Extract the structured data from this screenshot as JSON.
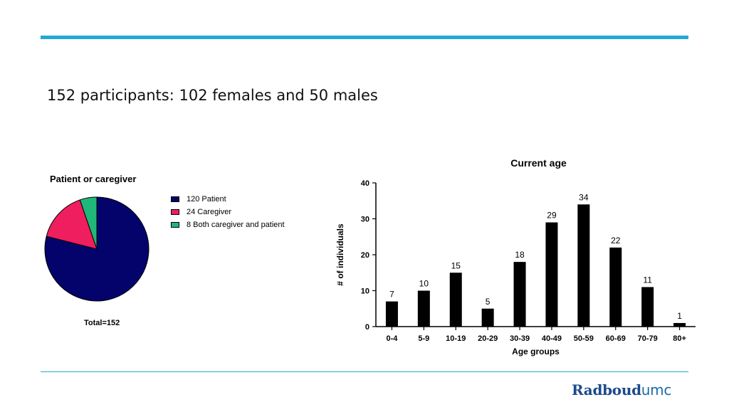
{
  "slide": {
    "title": "152 participants: 102 females and 50 males",
    "logo_main": "Radboud",
    "logo_suffix": "umc"
  },
  "chart_data": [
    {
      "type": "pie",
      "title": "Patient or caregiver",
      "footer": "Total=152",
      "legend_position": "right",
      "slices": [
        {
          "label": "120 Patient",
          "value": 120,
          "color": "#03036b"
        },
        {
          "label": "24 Caregiver",
          "value": 24,
          "color": "#ee1e5f"
        },
        {
          "label": "8 Both caregiver and patient",
          "value": 8,
          "color": "#1fb87a"
        }
      ]
    },
    {
      "type": "bar",
      "title": "Current age",
      "xlabel": "Age groups",
      "ylabel": "# of individuals",
      "ylim": [
        0,
        40
      ],
      "yticks": [
        0,
        10,
        20,
        30,
        40
      ],
      "categories": [
        "0-4",
        "5-9",
        "10-19",
        "20-29",
        "30-39",
        "40-49",
        "50-59",
        "60-69",
        "70-79",
        "80+"
      ],
      "values": [
        7,
        10,
        15,
        5,
        18,
        29,
        34,
        22,
        11,
        1
      ],
      "bar_color": "#000000",
      "grid": false
    }
  ]
}
